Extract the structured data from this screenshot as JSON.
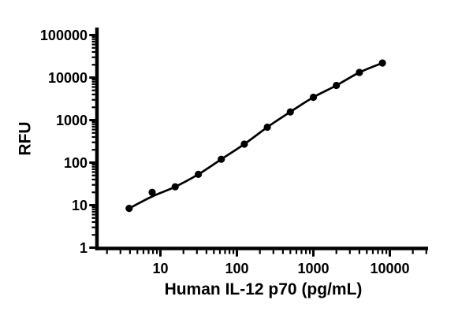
{
  "figure": {
    "background": "#ffffff",
    "ink_color": "#000000"
  },
  "chart_data": {
    "type": "scatter",
    "subtype": "standard-curve with fitted line, log-log axes",
    "title": "",
    "xlabel": "Human IL-12 p70 (pg/mL)",
    "ylabel": "RFU",
    "x_scale": "log10",
    "y_scale": "log10",
    "xlim": [
      1.5,
      33000
    ],
    "ylim": [
      1,
      150000
    ],
    "x_tick_labels": [
      "10",
      "100",
      "1000",
      "10000"
    ],
    "x_tick_values": [
      10,
      100,
      1000,
      10000
    ],
    "y_tick_labels": [
      "1",
      "10",
      "100",
      "1000",
      "10000",
      "100000"
    ],
    "y_tick_values": [
      1,
      10,
      100,
      1000,
      10000,
      100000
    ],
    "minor_ticks": "log decade minors (2-9) on both axes, outside",
    "grid": false,
    "legend": false,
    "marker": "filled-circle",
    "series": [
      {
        "name": "standards",
        "role": "data-points",
        "color": "#000000",
        "x": [
          3.9,
          7.8,
          15.6,
          31.3,
          62.5,
          125,
          250,
          500,
          1000,
          2000,
          4000,
          8000
        ],
        "y": [
          8.4,
          20,
          27,
          53,
          120,
          272,
          680,
          1560,
          3440,
          6530,
          13200,
          22000
        ]
      },
      {
        "name": "fit",
        "role": "fitted-curve",
        "color": "#000000",
        "x": [
          3.9,
          7.8,
          15.6,
          31.3,
          62.5,
          125,
          250,
          500,
          1000,
          2000,
          4000,
          8000
        ],
        "y": [
          8.4,
          16,
          27,
          53,
          120,
          272,
          680,
          1560,
          3440,
          6530,
          13200,
          22000
        ]
      }
    ]
  }
}
